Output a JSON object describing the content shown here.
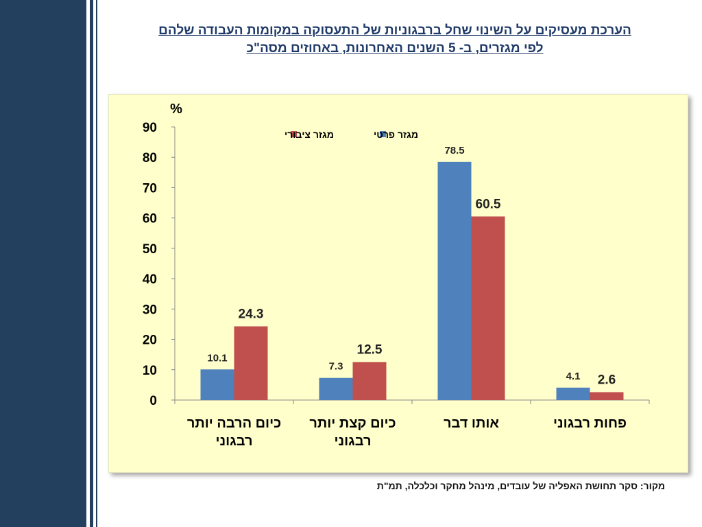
{
  "title": {
    "line1": "הערכת מעסיקים על השינוי שחל ברבגוניות של התעסוקה במקומות העבודה שלהם",
    "line2": "לפי מגזרים, ב- 5 השנים האחרונות, באחוזים מסה\"כ"
  },
  "source": "מקור: סקר תחושת האפליה של עובדים, מינהל מחקר וכלכלה, תמ\"ת",
  "colors": {
    "private": "#4f81bd",
    "public": "#c0504d",
    "panel_bg": "#ffffcc",
    "side_band": "#23415f",
    "title": "#1f3a68"
  },
  "chart_data": {
    "type": "bar",
    "ylabel": "%",
    "ylim": [
      0,
      90
    ],
    "yticks": [
      0,
      10,
      20,
      30,
      40,
      50,
      60,
      70,
      80,
      90
    ],
    "categories": [
      [
        "כיום הרבה יותר",
        "רבגוני"
      ],
      [
        "כיום קצת יותר",
        "רבגוני"
      ],
      [
        "אותו דבר"
      ],
      [
        "פחות רבגוני"
      ]
    ],
    "series": [
      {
        "name": "מגזר פרטי",
        "values": [
          10.1,
          7.3,
          78.5,
          4.1
        ]
      },
      {
        "name": "מגזר ציבורי",
        "values": [
          24.3,
          12.5,
          60.5,
          2.6
        ]
      }
    ],
    "legend": "top-left",
    "grid": false
  }
}
